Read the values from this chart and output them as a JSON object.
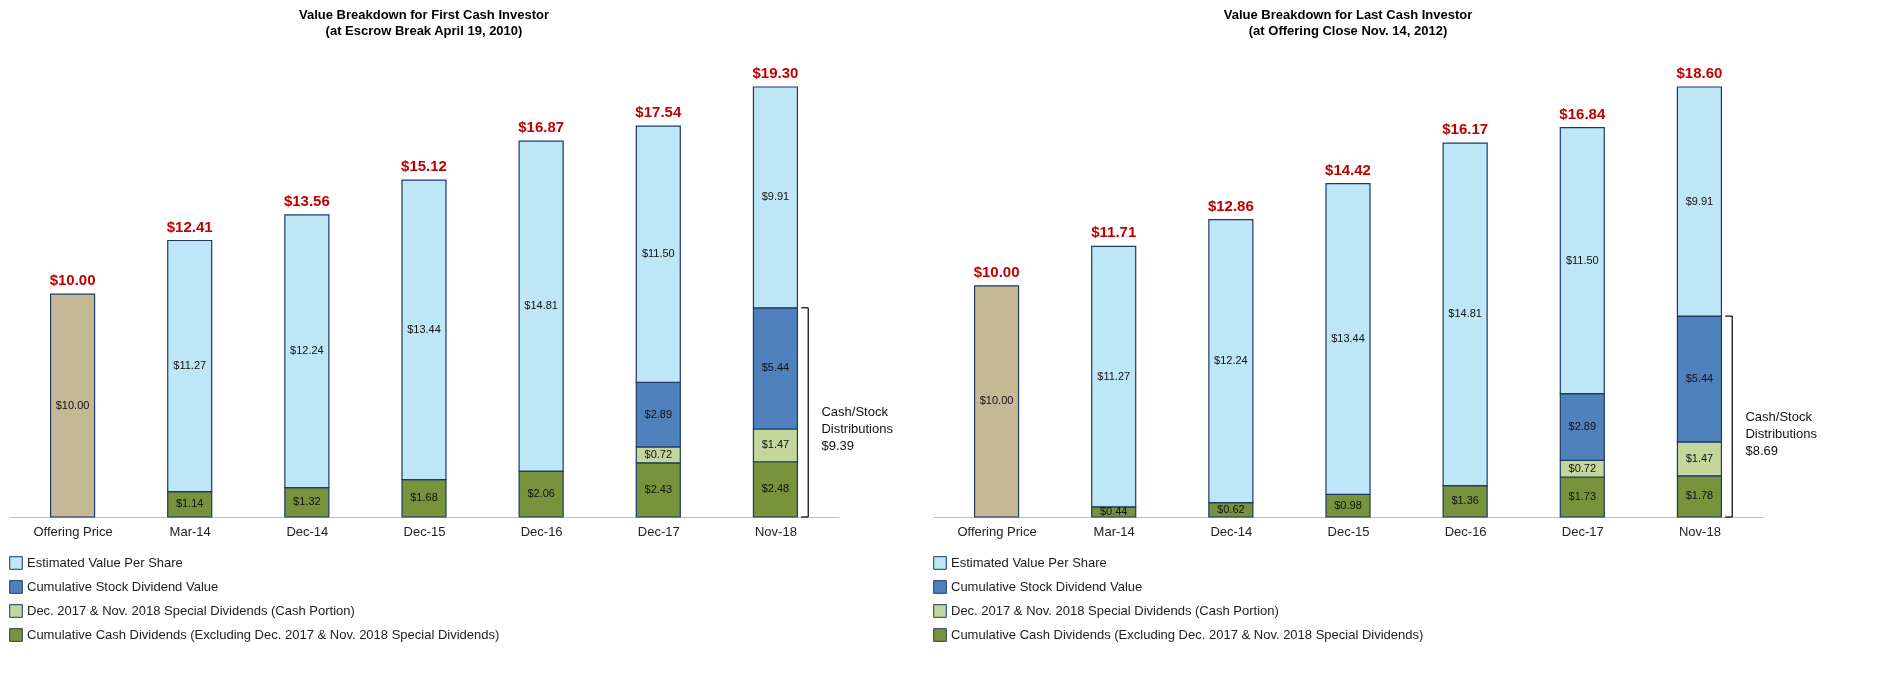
{
  "chart_data": [
    {
      "type": "bar",
      "stacked": true,
      "title": "Value Breakdown for First Cash Investor",
      "subtitle": "(at Escrow Break April 19, 2010)",
      "categories": [
        "Offering Price",
        "Mar-14",
        "Dec-14",
        "Dec-15",
        "Dec-16",
        "Dec-17",
        "Nov-18"
      ],
      "legend": "bottom",
      "grid": false,
      "series": [
        {
          "color": "#c4b994",
          "values": [
            10.0,
            null,
            null,
            null,
            null,
            null,
            null
          ],
          "value_labels": [
            "$10.00",
            null,
            null,
            null,
            null,
            null,
            null
          ]
        },
        {
          "name": "Cumulative Cash Dividends (Excluding Dec. 2017 & Nov. 2018 Special Dividends)",
          "color": "#77933c",
          "values": [
            null,
            1.14,
            1.32,
            1.68,
            2.06,
            2.43,
            2.48
          ],
          "value_labels": [
            null,
            "$1.14",
            "$1.32",
            "$1.68",
            "$2.06",
            "$2.43",
            "$2.48"
          ]
        },
        {
          "name": "Dec. 2017 & Nov. 2018 Special Dividends (Cash Portion)",
          "color": "#c3d69b",
          "values": [
            null,
            null,
            null,
            null,
            null,
            0.72,
            1.47
          ],
          "value_labels": [
            null,
            null,
            null,
            null,
            null,
            "$0.72",
            "$1.47"
          ]
        },
        {
          "name": "Cumulative Stock Dividend Value",
          "color": "#4f81bd",
          "values": [
            null,
            null,
            null,
            null,
            null,
            2.89,
            5.44
          ],
          "value_labels": [
            null,
            null,
            null,
            null,
            null,
            "$2.89",
            "$5.44"
          ]
        },
        {
          "name": "Estimated Value Per Share",
          "color": "#bde6f7",
          "values": [
            null,
            11.27,
            12.24,
            13.44,
            14.81,
            11.5,
            9.91
          ],
          "value_labels": [
            null,
            "$11.27",
            "$12.24",
            "$13.44",
            "$14.81",
            "$11.50",
            "$9.91"
          ]
        }
      ],
      "totals": [
        "$10.00",
        "$12.41",
        "$13.56",
        "$15.12",
        "$16.87",
        "$17.54",
        "$19.30"
      ],
      "annotations": [
        "Cash/Stock\nDistributions\n$9.39"
      ]
    },
    {
      "type": "bar",
      "stacked": true,
      "title": "Value Breakdown for Last Cash Investor",
      "subtitle": "(at Offering Close Nov. 14, 2012)",
      "categories": [
        "Offering Price",
        "Mar-14",
        "Dec-14",
        "Dec-15",
        "Dec-16",
        "Dec-17",
        "Nov-18"
      ],
      "legend": "bottom",
      "grid": false,
      "series": [
        {
          "color": "#c4b994",
          "values": [
            10.0,
            null,
            null,
            null,
            null,
            null,
            null
          ],
          "value_labels": [
            "$10.00",
            null,
            null,
            null,
            null,
            null,
            null
          ]
        },
        {
          "name": "Cumulative Cash Dividends (Excluding Dec. 2017 & Nov. 2018 Special Dividends)",
          "color": "#77933c",
          "values": [
            null,
            0.44,
            0.62,
            0.98,
            1.36,
            1.73,
            1.78
          ],
          "value_labels": [
            null,
            "$0.44",
            "$0.62",
            "$0.98",
            "$1.36",
            "$1.73",
            "$1.78"
          ]
        },
        {
          "name": "Dec. 2017 & Nov. 2018 Special Dividends (Cash Portion)",
          "color": "#c3d69b",
          "values": [
            null,
            null,
            null,
            null,
            null,
            0.72,
            1.47
          ],
          "value_labels": [
            null,
            null,
            null,
            null,
            null,
            "$0.72",
            "$1.47"
          ]
        },
        {
          "name": "Cumulative Stock Dividend Value",
          "color": "#4f81bd",
          "values": [
            null,
            null,
            null,
            null,
            null,
            2.89,
            5.44
          ],
          "value_labels": [
            null,
            null,
            null,
            null,
            null,
            "$2.89",
            "$5.44"
          ]
        },
        {
          "name": "Estimated Value Per Share",
          "color": "#bde6f7",
          "values": [
            null,
            11.27,
            12.24,
            13.44,
            14.81,
            11.5,
            9.91
          ],
          "value_labels": [
            null,
            "$11.27",
            "$12.24",
            "$13.44",
            "$14.81",
            "$11.50",
            "$9.91"
          ]
        }
      ],
      "totals": [
        "$10.00",
        "$11.71",
        "$12.86",
        "$14.42",
        "$16.17",
        "$16.84",
        "$18.60"
      ],
      "annotations": [
        "Cash/Stock\nDistributions\n$8.69"
      ]
    }
  ]
}
